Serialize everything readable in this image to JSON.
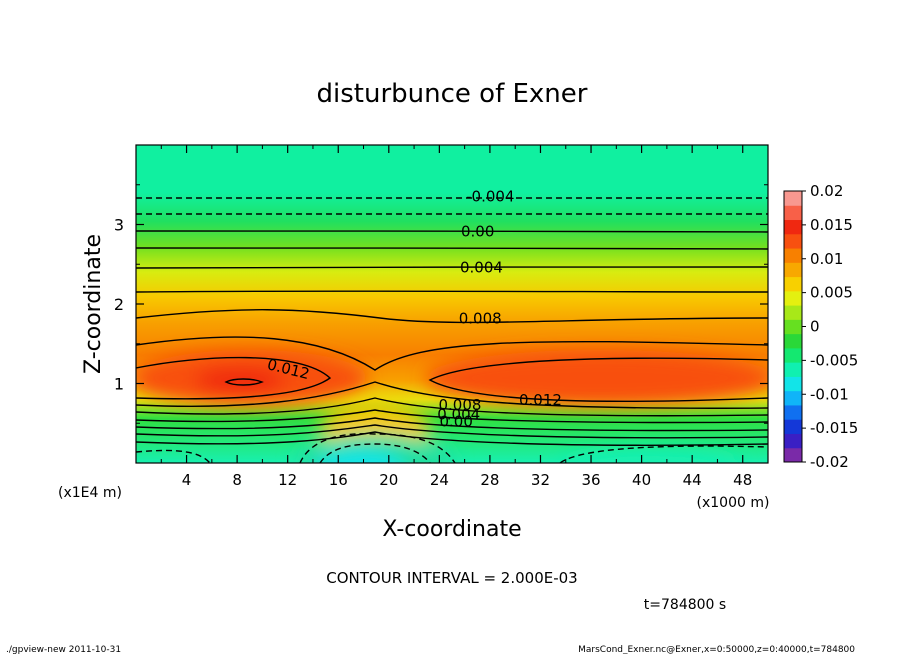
{
  "chart_data": {
    "type": "heatmap",
    "title": "disturbunce of Exner",
    "xlabel": "X-coordinate",
    "ylabel": "Z-coordinate",
    "x_unit": "(x1000 m)",
    "y_unit": "(x1E4 m)",
    "xlim": [
      0,
      50
    ],
    "ylim": [
      0,
      4
    ],
    "x_ticks": [
      "4",
      "8",
      "12",
      "16",
      "20",
      "24",
      "28",
      "32",
      "36",
      "40",
      "44",
      "48"
    ],
    "y_ticks": [
      "1",
      "2",
      "3"
    ],
    "colorbar": {
      "min": -0.02,
      "max": 0.02,
      "tick_labels": [
        "0.02",
        "0.015",
        "0.01",
        "0.005",
        "0",
        "-0.005",
        "-0.01",
        "-0.015",
        "-0.02"
      ],
      "colors": [
        "#7a2aa8",
        "#3a1fc4",
        "#1438d8",
        "#1070f0",
        "#10b4f8",
        "#12e4e8",
        "#10f0b0",
        "#14e870",
        "#2ad838",
        "#66e020",
        "#a8e818",
        "#e4f010",
        "#f8d000",
        "#f8a800",
        "#f88000",
        "#f85010",
        "#f02810",
        "#f86048",
        "#f89890"
      ]
    },
    "contour_labels": [
      "-0.004",
      "0.00",
      "0.004",
      "0.008",
      "0.012",
      "0.012",
      "0.008",
      "0.004",
      "0.00"
    ],
    "contour_interval_text": "CONTOUR INTERVAL = 2.000E-03",
    "time_text": "t=784800 s"
  },
  "footer": {
    "left": "./gpview-new   2011-10-31",
    "right": "MarsCond_Exner.nc@Exner,x=0:50000,z=0:40000,t=784800"
  }
}
